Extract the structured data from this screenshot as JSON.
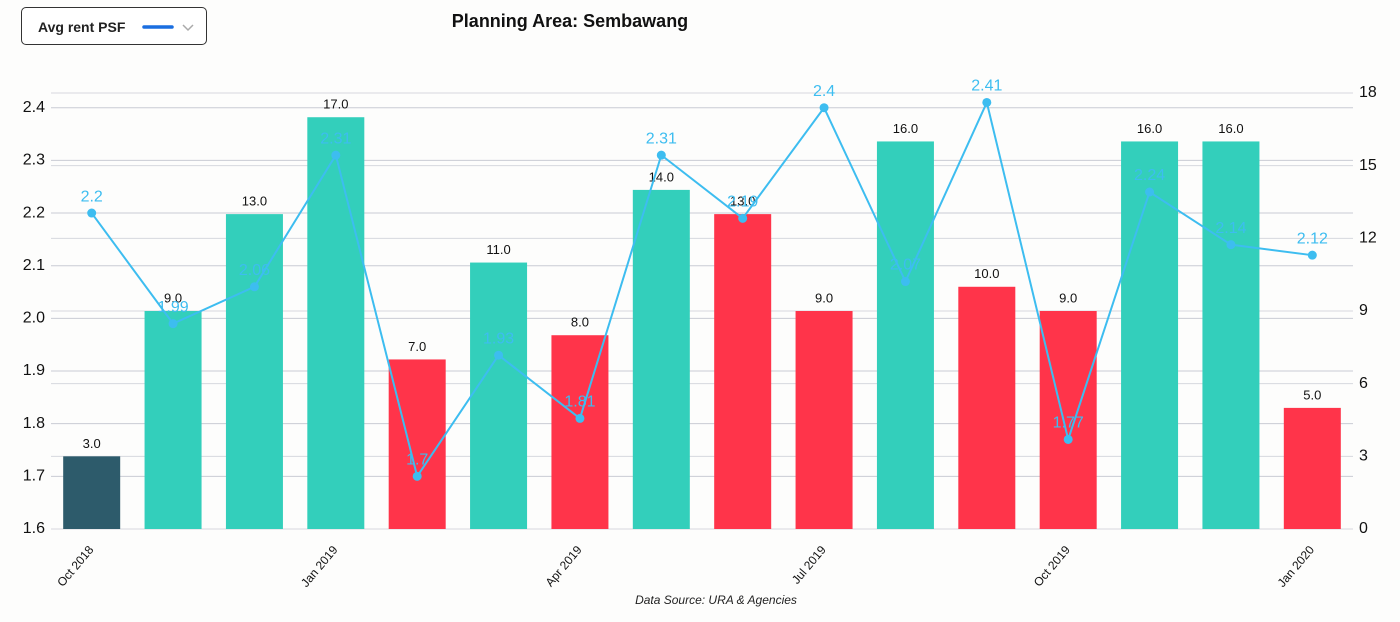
{
  "dropdown": {
    "label": "Avg rent PSF"
  },
  "chart_data": {
    "type": "combo",
    "title": "Planning Area: Sembawang",
    "caption": "Data Source: URA & Agencies",
    "categories": [
      "Oct 2018",
      null,
      null,
      "Jan 2019",
      null,
      null,
      "Apr 2019",
      null,
      null,
      "Jul 2019",
      null,
      null,
      "Oct 2019",
      null,
      null,
      "Jan 2020"
    ],
    "ylim": [
      1.6,
      2.428
    ],
    "yticks": [
      1.6,
      1.7,
      1.8,
      1.9,
      {
        "value": 2.0,
        "label": "2.0"
      },
      2.1,
      2.2,
      2.3,
      2.4
    ],
    "y2lim": [
      0,
      18
    ],
    "y2ticks": [
      0,
      3,
      6,
      9,
      12,
      15,
      18
    ],
    "grid": true,
    "series": [
      {
        "type": "bar",
        "axis": "y2",
        "colors": [
          "#2d5b6b",
          "#33cfbb",
          "#33cfbb",
          "#33cfbb",
          "#ff344a",
          "#33cfbb",
          "#ff344a",
          "#33cfbb",
          "#ff344a",
          "#ff344a",
          "#33cfbb",
          "#ff344a",
          "#ff344a",
          "#33cfbb",
          "#33cfbb",
          "#ff344a"
        ],
        "values": [
          3,
          9,
          13,
          17,
          7,
          11,
          8,
          14,
          13,
          9,
          16,
          10,
          9,
          16,
          16,
          5
        ],
        "value_labels": [
          "3.0",
          "9.0",
          "13.0",
          "17.0",
          "7.0",
          "11.0",
          "8.0",
          "14.0",
          "13.0",
          "9.0",
          "16.0",
          "10.0",
          "9.0",
          "16.0",
          "16.0",
          "5.0"
        ]
      },
      {
        "type": "line",
        "axis": "y",
        "color": "#3dbdf0",
        "values": [
          2.2,
          1.99,
          2.06,
          2.31,
          1.7,
          1.93,
          1.81,
          2.31,
          2.19,
          2.4,
          2.07,
          2.41,
          1.77,
          2.24,
          2.14,
          2.12
        ]
      }
    ]
  }
}
